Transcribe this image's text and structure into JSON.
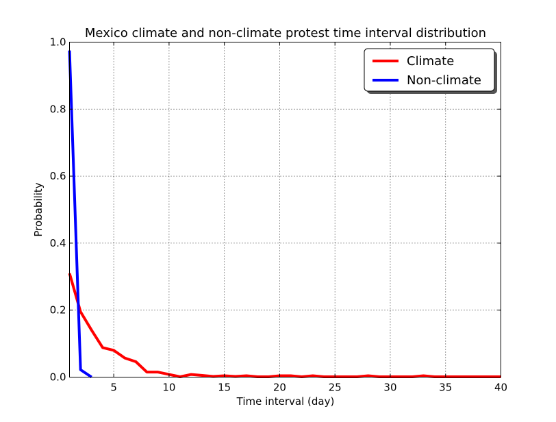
{
  "chart_data": {
    "type": "line",
    "title": "Mexico climate and non-climate protest time interval distribution",
    "xlabel": "Time interval (day)",
    "ylabel": "Probability",
    "xlim": [
      1,
      40
    ],
    "ylim": [
      0,
      1.0
    ],
    "xticks": [
      5,
      10,
      15,
      20,
      25,
      30,
      35,
      40
    ],
    "yticks": [
      0.0,
      0.2,
      0.4,
      0.6,
      0.8,
      1.0
    ],
    "xtick_labels": [
      "5",
      "10",
      "15",
      "20",
      "25",
      "30",
      "35",
      "40"
    ],
    "ytick_labels": [
      "0.0",
      "0.2",
      "0.4",
      "0.6",
      "0.8",
      "1.0"
    ],
    "grid": true,
    "legend_position": "top-right",
    "series": [
      {
        "name": "Climate",
        "color": "#ff0000",
        "x": [
          1,
          2,
          3,
          4,
          5,
          6,
          7,
          8,
          9,
          10,
          11,
          12,
          13,
          14,
          15,
          16,
          17,
          18,
          19,
          20,
          21,
          22,
          23,
          24,
          25,
          26,
          27,
          28,
          29,
          30,
          31,
          32,
          33,
          34,
          35,
          36,
          37,
          38,
          39,
          40
        ],
        "y": [
          0.31,
          0.195,
          0.14,
          0.088,
          0.08,
          0.057,
          0.046,
          0.015,
          0.015,
          0.008,
          0.001,
          0.008,
          0.005,
          0.002,
          0.004,
          0.002,
          0.004,
          0.001,
          0.001,
          0.004,
          0.004,
          0.001,
          0.004,
          0.001,
          0.001,
          0.001,
          0.001,
          0.004,
          0.001,
          0.001,
          0.001,
          0.001,
          0.004,
          0.001,
          0.001,
          0.001,
          0.001,
          0.001,
          0.001,
          0.001
        ]
      },
      {
        "name": "Non-climate",
        "color": "#0000ff",
        "x": [
          1,
          2,
          3
        ],
        "y": [
          0.975,
          0.022,
          0.0
        ]
      }
    ]
  }
}
